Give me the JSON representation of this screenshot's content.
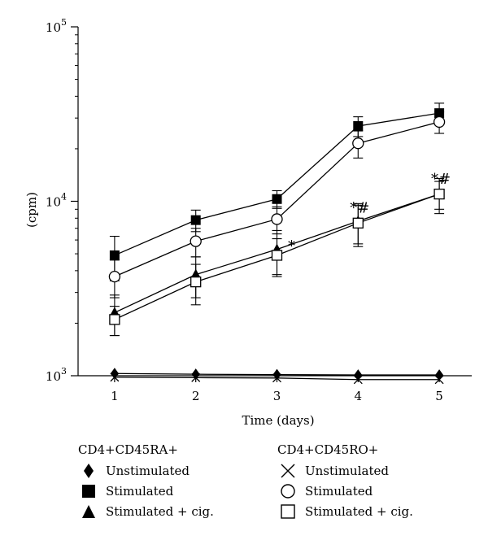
{
  "chart_data": {
    "type": "line",
    "xlabel": "Time (days)",
    "ylabel": "(cpm)",
    "x": [
      1,
      2,
      3,
      4,
      5
    ],
    "xlim": [
      0.55,
      5.4
    ],
    "ylim": [
      1000,
      100000
    ],
    "yscale": "log",
    "y_ticks": [
      {
        "base": "10",
        "exp": "3",
        "value": 1000
      },
      {
        "base": "10",
        "exp": "4",
        "value": 10000
      },
      {
        "base": "10",
        "exp": "5",
        "value": 100000
      }
    ],
    "series": [
      {
        "group": "CD4+CD45RA+",
        "name": "Unstimulated",
        "marker": "diamond",
        "values": [
          1030,
          1020,
          1015,
          1010,
          1010
        ],
        "errors": [
          0,
          0,
          0,
          0,
          0
        ]
      },
      {
        "group": "CD4+CD45RA+",
        "name": "Stimulated",
        "marker": "square-filled",
        "values": [
          4900,
          7800,
          10300,
          27000,
          32000
        ],
        "errors": [
          1400,
          1100,
          1200,
          3500,
          4500
        ]
      },
      {
        "group": "CD4+CD45RA+",
        "name": "Stimulated + cig.",
        "marker": "triangle",
        "values": [
          2300,
          3800,
          5300,
          7700,
          11000
        ],
        "errors": [
          600,
          1000,
          1500,
          2000,
          2000
        ]
      },
      {
        "group": "CD4+CD45RO+",
        "name": "Unstimulated",
        "marker": "x",
        "values": [
          980,
          975,
          970,
          950,
          950
        ],
        "errors": [
          0,
          0,
          0,
          0,
          0
        ]
      },
      {
        "group": "CD4+CD45RO+",
        "name": "Stimulated",
        "marker": "circle",
        "values": [
          3700,
          5900,
          7900,
          21500,
          28500
        ],
        "errors": [
          900,
          1100,
          1400,
          3800,
          4000
        ]
      },
      {
        "group": "CD4+CD45RO+",
        "name": "Stimulated + cig.",
        "marker": "square-open",
        "values": [
          2100,
          3450,
          4900,
          7500,
          11000
        ],
        "errors": [
          400,
          900,
          1200,
          2000,
          2500
        ]
      }
    ],
    "annotations": [
      {
        "text": "*",
        "x": 3,
        "y": 5900
      },
      {
        "text": "*#",
        "x": 4,
        "y": 9800
      },
      {
        "text": "*#",
        "x": 5,
        "y": 14300
      }
    ]
  },
  "legend": {
    "groups": [
      {
        "title": "CD4+CD45RA+",
        "items": [
          {
            "marker": "diamond",
            "label": "Unstimulated"
          },
          {
            "marker": "square-filled",
            "label": "Stimulated"
          },
          {
            "marker": "triangle",
            "label": "Stimulated + cig."
          }
        ]
      },
      {
        "title": "CD4+CD45RO+",
        "items": [
          {
            "marker": "x",
            "label": "Unstimulated"
          },
          {
            "marker": "circle",
            "label": "Stimulated"
          },
          {
            "marker": "square-open",
            "label": "Stimulated + cig."
          }
        ]
      }
    ]
  }
}
